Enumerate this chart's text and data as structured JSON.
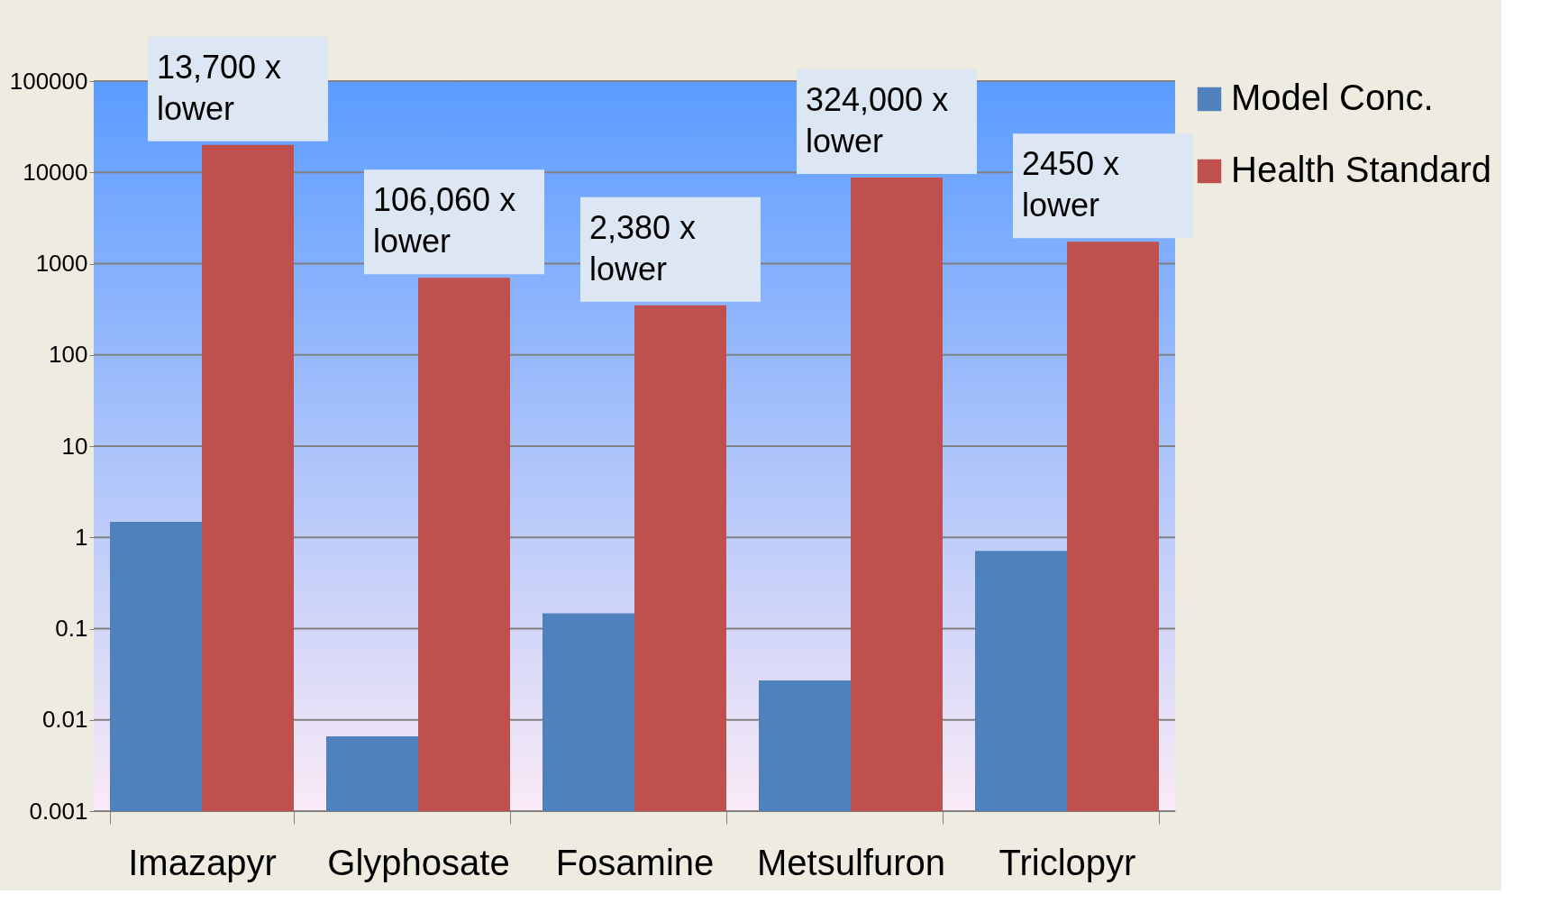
{
  "chart_data": {
    "type": "bar",
    "log": "y",
    "categories": [
      "Imazapyr",
      "Glyphosate",
      "Fosamine",
      "Metsulfuron",
      "Triclopyr"
    ],
    "series": [
      {
        "name": "Model Conc.",
        "color": "#4f81bd",
        "values": [
          1.48,
          0.0066,
          0.147,
          0.027,
          0.71
        ]
      },
      {
        "name": "Health Standard",
        "color": "#c0504d",
        "values": [
          20000,
          700,
          350,
          8750,
          1740
        ]
      }
    ],
    "ylim": [
      0.001,
      100000
    ],
    "yticks": [
      0.001,
      0.01,
      0.1,
      1,
      10,
      100,
      1000,
      10000,
      100000
    ],
    "grid": "y",
    "legend": "right",
    "annotations": [
      "13,700 x\nlower",
      "106,060 x\nlower",
      "2,380 x\nlower",
      "324,000 x\nlower",
      "2450 x\nlower"
    ]
  }
}
